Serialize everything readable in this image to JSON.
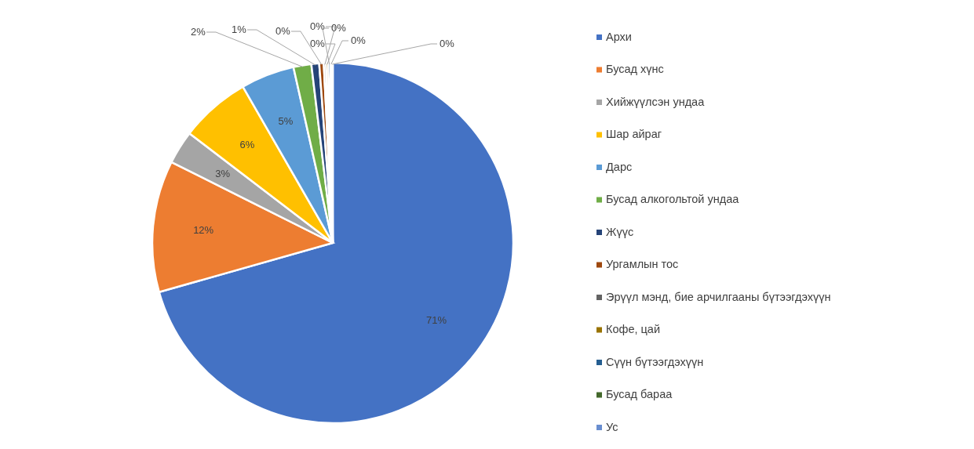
{
  "chart_data": {
    "type": "pie",
    "legend": "right",
    "categories": [
      "Архи",
      "Бусад хүнс",
      "Хийжүүлсэн ундаа",
      "Шар айраг",
      "Дарс",
      "Бусад алкогольтой ундаа",
      "Жүүс",
      "Ургамлын тос",
      "Эрүүл мэнд, бие арчилгааны бүтээгдэхүүн",
      "Кофе, цай",
      "Сүүн бүтээгдэхүүн",
      "Бусад бараа",
      "Ус"
    ],
    "values": [
      70.6,
      11.8,
      3.0,
      6.3,
      4.8,
      1.6,
      0.7,
      0.4,
      0.2,
      0.2,
      0.2,
      0.1,
      0.1
    ],
    "value_labels": [
      "71%",
      "12%",
      "3%",
      "6%",
      "5%",
      "2%",
      "1%",
      "0%",
      "0%",
      "0%",
      "0%",
      "0%",
      "0%"
    ],
    "colors": [
      "#4472c4",
      "#ed7d31",
      "#a5a5a5",
      "#ffc000",
      "#5b9bd5",
      "#70ad47",
      "#264478",
      "#9e480e",
      "#636363",
      "#997300",
      "#255e91",
      "#43682b",
      "#698ed0"
    ]
  }
}
